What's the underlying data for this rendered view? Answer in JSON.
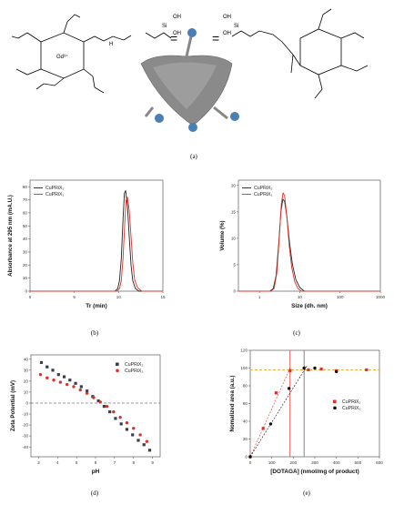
{
  "panels": {
    "a": {
      "caption": "(a)",
      "ion_label": "Gd³⁺",
      "si_label": "Si",
      "oh_label": "OH",
      "nh_label": "H",
      "equals": "="
    },
    "b": {
      "caption": "(b)",
      "chart_data": {
        "type": "line",
        "xlabel": "Tr (min)",
        "ylabel": "Absorbance at 295 nm (mA.U.)",
        "xlim": [
          0,
          15
        ],
        "ylim": [
          0,
          85
        ],
        "xticks": [
          "0",
          "5",
          "10",
          "15"
        ],
        "yticks": [
          "0",
          "10",
          "20",
          "30",
          "40",
          "50",
          "60",
          "70",
          "80"
        ],
        "legend_position": "top-left",
        "series": [
          {
            "name": "CuPRiX₂",
            "color": "#222222",
            "x": [
              0,
              9.6,
              9.9,
              10.1,
              10.3,
              10.5,
              10.65,
              10.8,
              11.0,
              11.2,
              11.4,
              11.6,
              11.9,
              12.3,
              15
            ],
            "y": [
              0,
              0,
              2,
              8,
              25,
              55,
              75,
              77,
              65,
              42,
              20,
              8,
              2,
              0,
              0
            ]
          },
          {
            "name": "CuPRiX₁",
            "color": "#e0302a",
            "x": [
              0,
              9.8,
              10.1,
              10.3,
              10.5,
              10.7,
              10.85,
              11.0,
              11.2,
              11.4,
              11.6,
              11.8,
              12.1,
              12.6,
              15
            ],
            "y": [
              0,
              0,
              2,
              8,
              25,
              52,
              70,
              72,
              62,
              42,
              22,
              9,
              3,
              0,
              0
            ]
          }
        ]
      }
    },
    "c": {
      "caption": "(c)",
      "chart_data": {
        "type": "line",
        "xlabel": "Size (dh. nm)",
        "ylabel": "Volume (%)",
        "xscale": "log",
        "xlim": [
          0.3,
          1000
        ],
        "ylim": [
          0,
          21
        ],
        "xticks": [
          {
            "value": 1,
            "label": "1"
          },
          {
            "value": 10,
            "label": "10"
          },
          {
            "value": 100,
            "label": "100"
          },
          {
            "value": 1000,
            "label": "1000"
          }
        ],
        "yticks": [
          "0",
          "5",
          "10",
          "15",
          "20"
        ],
        "legend_position": "top-left",
        "series": [
          {
            "name": "CuPRiX₂",
            "color": "#222222",
            "x": [
              0.3,
              1.8,
              2.2,
              2.6,
              3.0,
              3.4,
              3.8,
              4.2,
              4.8,
              5.6,
              6.6,
              8,
              10,
              13,
              1000
            ],
            "y": [
              0,
              0,
              0.5,
              3,
              9,
              15,
              17.4,
              17,
              14,
              9,
              5,
              2.2,
              0.7,
              0,
              0
            ]
          },
          {
            "name": "CuPRiX₁",
            "color": "#e0302a",
            "x": [
              0.3,
              1.9,
              2.3,
              2.7,
              3.1,
              3.5,
              3.85,
              4.2,
              4.8,
              5.5,
              6.3,
              7.5,
              9,
              11,
              1000
            ],
            "y": [
              0,
              0,
              0.5,
              3.5,
              10,
              16.5,
              18.6,
              18,
              14,
              8.5,
              4.5,
              1.8,
              0.5,
              0,
              0
            ]
          }
        ]
      }
    },
    "d": {
      "caption": "(d)",
      "chart_data": {
        "type": "scatter",
        "xlabel": "pH",
        "ylabel": "Zeta Potential (mV)",
        "xlim": [
          2.6,
          9.4
        ],
        "ylim": [
          -49,
          44
        ],
        "xticks": [
          "3",
          "4",
          "5",
          "6",
          "7",
          "8",
          "9"
        ],
        "yticks": [
          "-40",
          "-30",
          "-20",
          "-10",
          "0",
          "10",
          "20",
          "30",
          "40"
        ],
        "zero_line": "dashed",
        "legend_position": "top-right",
        "series": [
          {
            "name": "CuPRiX₂",
            "color": "#3a3f4a",
            "marker": "square",
            "x": [
              3.15,
              3.45,
              3.75,
              4.05,
              4.35,
              4.65,
              4.95,
              5.25,
              5.55,
              5.85,
              6.15,
              6.45,
              6.75,
              7.05,
              7.35,
              7.65,
              7.95,
              8.25,
              8.55,
              8.85
            ],
            "y": [
              37,
              33,
              30,
              26,
              24,
              21,
              18,
              15,
              11,
              6,
              2,
              -3,
              -8,
              -14,
              -19,
              -24,
              -29,
              -34,
              -38,
              -43
            ]
          },
          {
            "name": "CuPRiX₁",
            "color": "#e0302a",
            "marker": "circle",
            "x": [
              3.1,
              3.45,
              3.8,
              4.15,
              4.5,
              4.85,
              5.2,
              5.55,
              5.9,
              6.25,
              6.6,
              6.95,
              7.3,
              7.65,
              8.0,
              8.35,
              8.7
            ],
            "y": [
              26,
              23,
              21,
              19,
              17,
              15,
              12,
              9,
              5,
              1,
              -3,
              -8,
              -13,
              -18,
              -23,
              -29,
              -35
            ]
          }
        ]
      }
    },
    "e": {
      "caption": "(e)",
      "chart_data": {
        "type": "scatter",
        "xlabel": "[DOTAGA] (nmol/mg of product)",
        "ylabel": "Nomalized area (a.u.)",
        "xlim": [
          0,
          600
        ],
        "ylim": [
          0,
          120
        ],
        "xticks": [
          "0",
          "100",
          "200",
          "300",
          "400",
          "500",
          "600"
        ],
        "yticks": [
          "0",
          "20",
          "40",
          "60",
          "80",
          "100",
          "120"
        ],
        "plateau": 98,
        "plateau_color": "#f5a623",
        "legend_position": "middle-right",
        "series": [
          {
            "name": "CuPRiX₁",
            "color": "#e0302a",
            "marker": "square",
            "x": [
              0,
              60,
              120,
              185,
              270,
              330,
              400,
              540
            ],
            "y": [
              0,
              32,
              72,
              97,
              98,
              99,
              97,
              98
            ],
            "fit_x": [
              0,
              185
            ],
            "fit_y": [
              0,
              100
            ],
            "vline_x": 185
          },
          {
            "name": "CuPRiX₂",
            "color": "#111111",
            "marker": "circle",
            "x": [
              0,
              95,
              180,
              250,
              300,
              400
            ],
            "y": [
              0,
              37,
              77,
              100,
              100,
              96
            ],
            "fit_x": [
              0,
              265
            ],
            "fit_y": [
              0,
              103
            ],
            "vline_x": 250
          }
        ]
      }
    }
  }
}
